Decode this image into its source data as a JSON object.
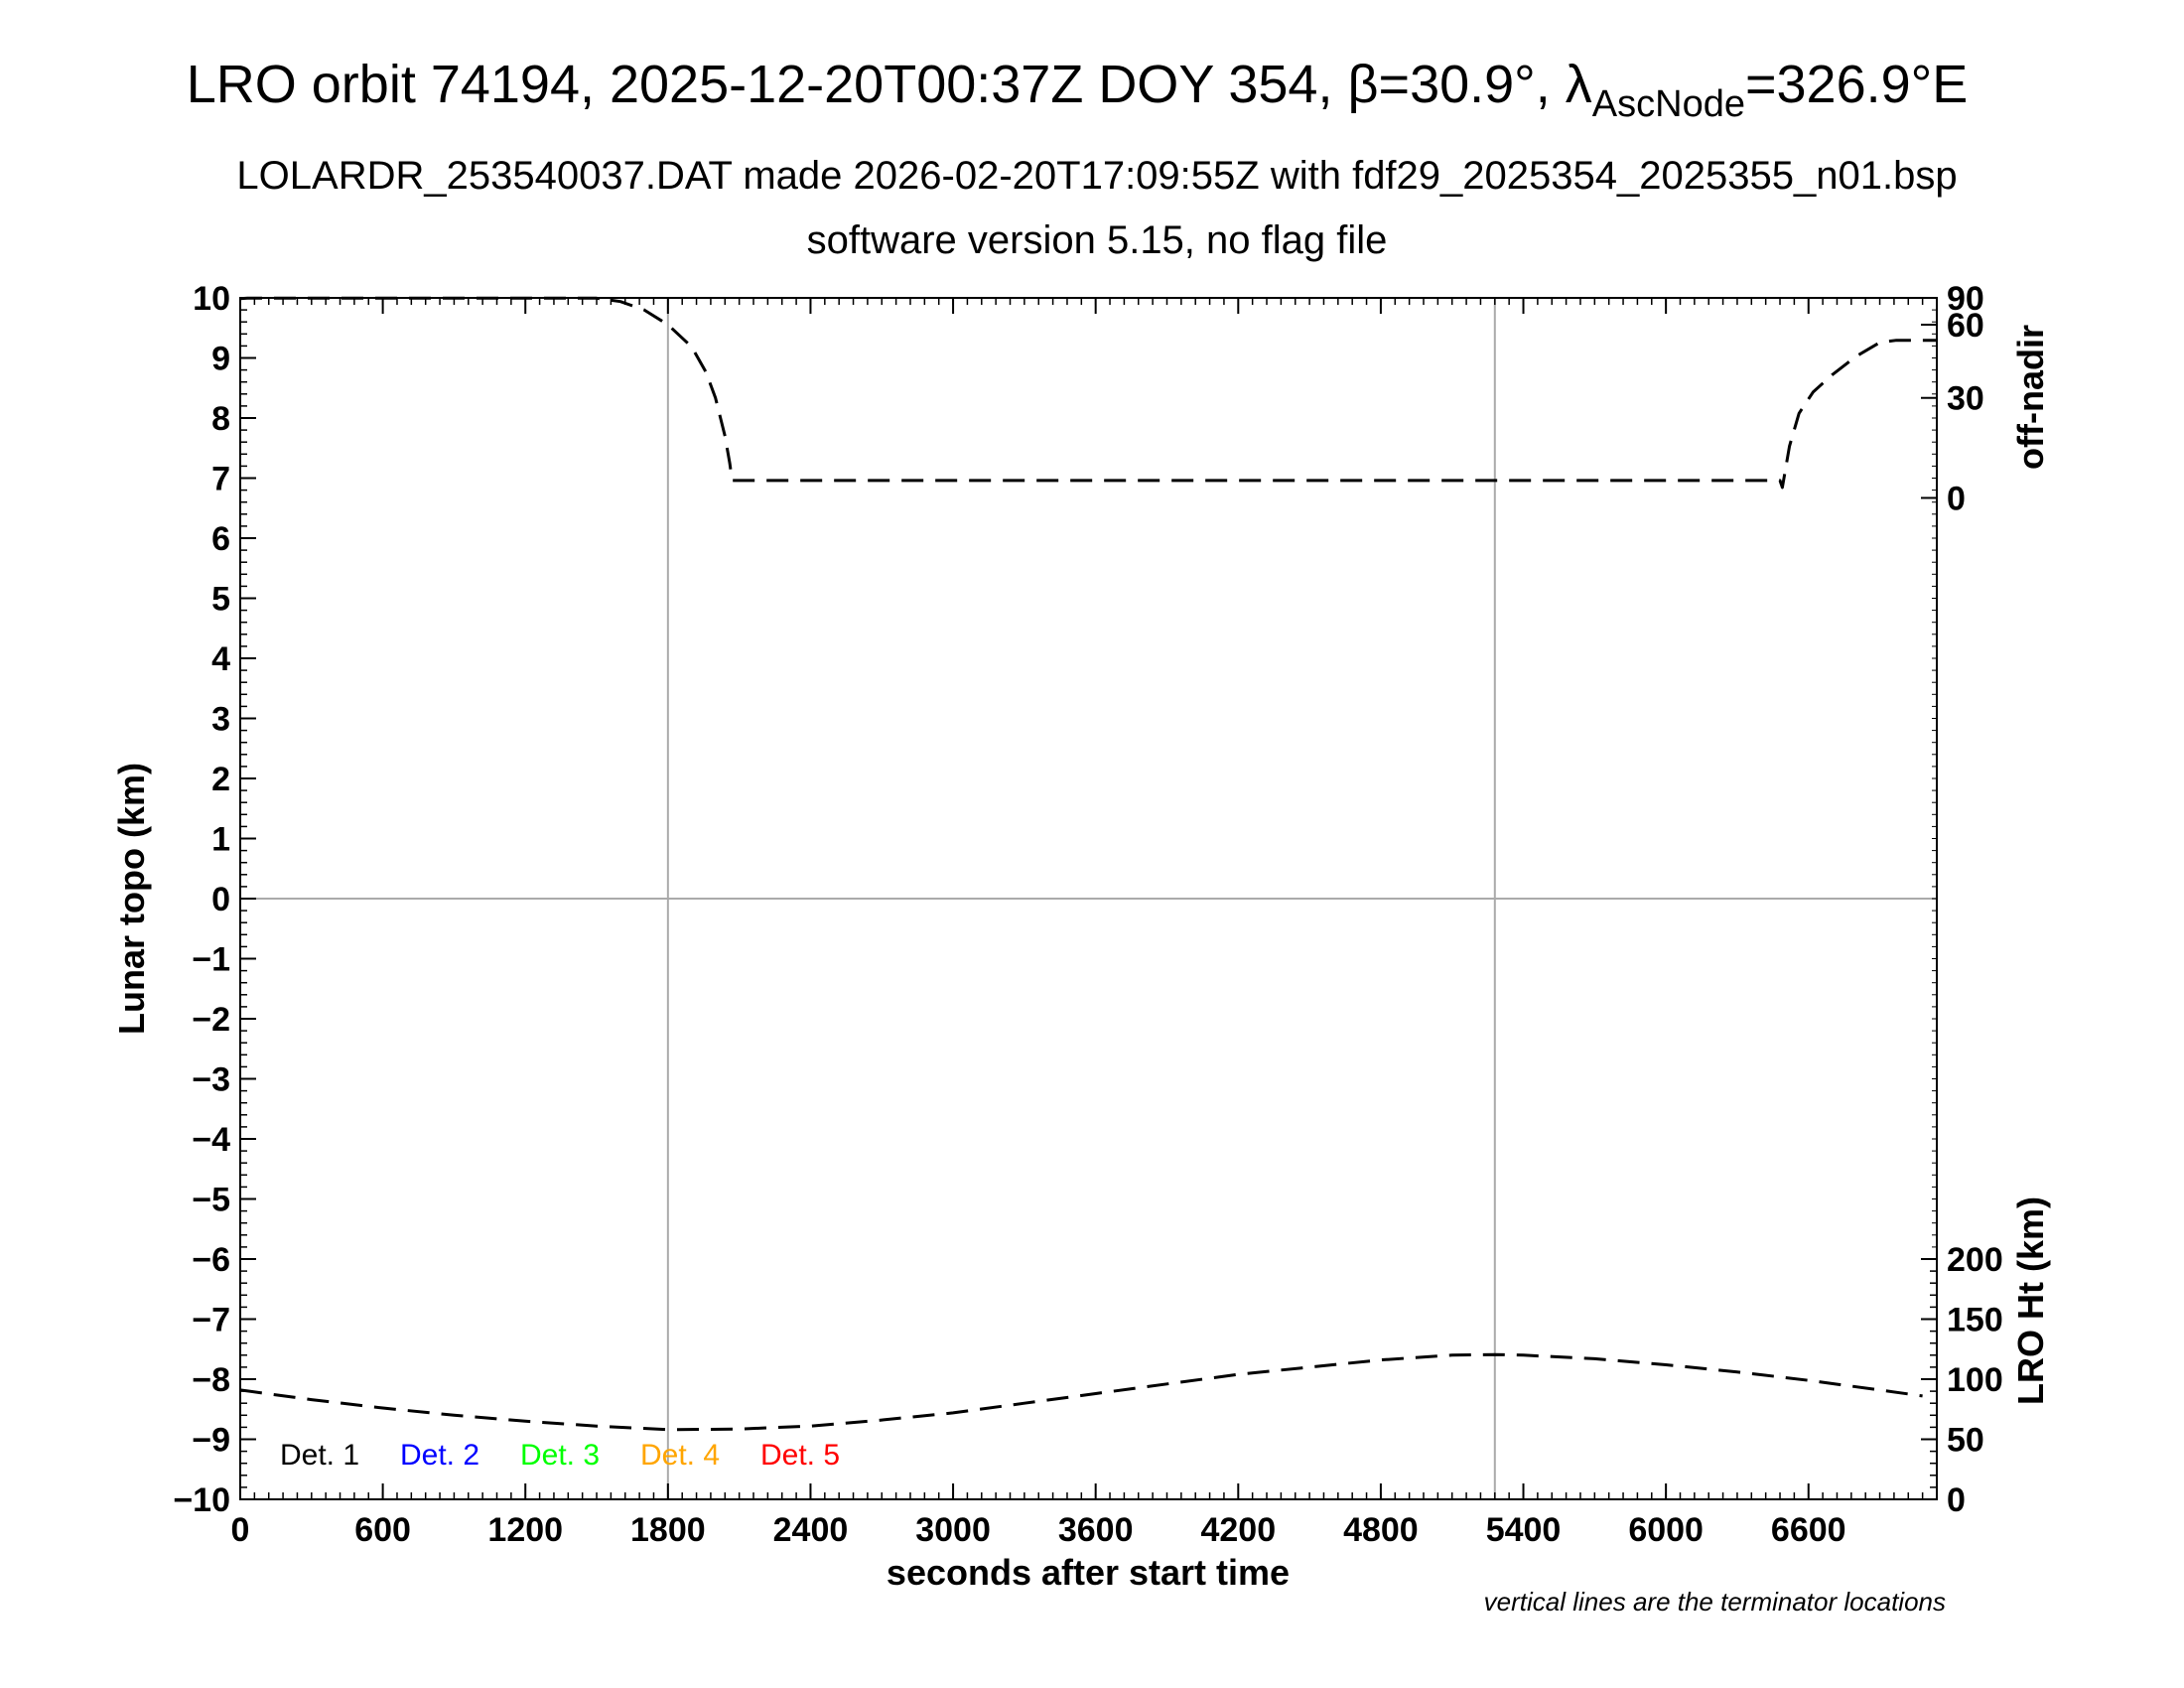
{
  "chart_data": {
    "type": "line",
    "title_parts": {
      "before_beta": "LRO orbit 74194, 2025-12-20T00:37Z DOY 354, ",
      "beta_symbol": "β",
      "beta_value": "=30.9°, ",
      "lambda_symbol": "λ",
      "lambda_subscript": "AscNode",
      "lambda_value": "=326.9°E"
    },
    "subtitle": "LOLARDR_253540037.DAT made 2026-02-20T17:09:55Z with fdf29_2025354_2025355_n01.bsp",
    "subtitle2": "software version 5.15, no flag file",
    "xlabel": "seconds after start time",
    "ylabel": "Lunar topo (km)",
    "y2label_top": "off-nadir",
    "y2label_bottom": "LRO Ht (km)",
    "note": "vertical lines are the terminator locations",
    "xlim": [
      0,
      7140
    ],
    "ylim": [
      -10,
      10
    ],
    "x_ticks": [
      0,
      600,
      1200,
      1800,
      2400,
      3000,
      3600,
      4200,
      4800,
      5400,
      6000,
      6600
    ],
    "x_tick_labels": [
      "0",
      "600",
      "1200",
      "1800",
      "2400",
      "3000",
      "3600",
      "4200",
      "4800",
      "5400",
      "6000",
      "6600"
    ],
    "y_ticks": [
      10,
      9,
      8,
      7,
      6,
      5,
      4,
      3,
      2,
      1,
      0,
      -1,
      -2,
      -3,
      -4,
      -5,
      -6,
      -7,
      -8,
      -9,
      -10
    ],
    "y_tick_labels": [
      "10",
      "9",
      "8",
      "7",
      "6",
      "5",
      "4",
      "3",
      "2",
      "1",
      "0",
      "−1",
      "−2",
      "−3",
      "−4",
      "−5",
      "−6",
      "−7",
      "−8",
      "−9",
      "−10"
    ],
    "offnadir_axis": {
      "ticks": [
        90,
        60,
        30,
        0
      ],
      "tick_labels": [
        "90",
        "60",
        "30",
        "0"
      ],
      "topo_at_zero": 6.67,
      "topo_at_ninety": 10.0
    },
    "height_axis": {
      "ticks": [
        200,
        150,
        100,
        50,
        0
      ],
      "tick_labels": [
        "200",
        "150",
        "100",
        "50",
        "0"
      ],
      "topo_at_zero": -10.0,
      "topo_per_km": 0.02
    },
    "terminators_x": [
      1800,
      5280
    ],
    "zero_line_y": 0,
    "grid": false,
    "legend_position": "bottom-left",
    "legend": [
      {
        "label": "Det. 1",
        "color": "#000000"
      },
      {
        "label": "Det. 2",
        "color": "#0000ff"
      },
      {
        "label": "Det. 3",
        "color": "#00ff00"
      },
      {
        "label": "Det. 4",
        "color": "#ffa500"
      },
      {
        "label": "Det. 5",
        "color": "#ff0000"
      }
    ],
    "series": [
      {
        "axis": "off-nadir",
        "style": "dashed",
        "color": "#000000",
        "x": [
          0,
          30,
          1500,
          1600,
          1700,
          1800,
          1900,
          1960,
          2000,
          2040,
          2060,
          2070,
          2100,
          2400,
          3000,
          4000,
          5000,
          6000,
          6300,
          6480,
          6490,
          6520,
          6560,
          6620,
          6700,
          6800,
          6900,
          6970,
          7140
        ],
        "y": [
          85,
          87,
          87,
          79,
          70,
          60,
          49,
          39,
          30,
          18,
          10,
          5,
          5,
          5,
          5,
          5,
          5,
          5,
          5,
          5,
          3,
          15,
          25,
          32,
          38,
          45,
          51,
          52,
          52
        ]
      },
      {
        "axis": "height",
        "style": "dashed",
        "color": "#000000",
        "x": [
          0,
          300,
          600,
          900,
          1200,
          1500,
          1800,
          2100,
          2400,
          2700,
          3000,
          3300,
          3600,
          3900,
          4200,
          4500,
          4800,
          5100,
          5280,
          5400,
          5700,
          6000,
          6300,
          6600,
          6900,
          7080
        ],
        "y": [
          91,
          83,
          76,
          70,
          65,
          61,
          58,
          58.5,
          61,
          66,
          72,
          80,
          88,
          96,
          104,
          110,
          116,
          120,
          120.5,
          120,
          117,
          112,
          106,
          99,
          91,
          86
        ]
      }
    ]
  }
}
